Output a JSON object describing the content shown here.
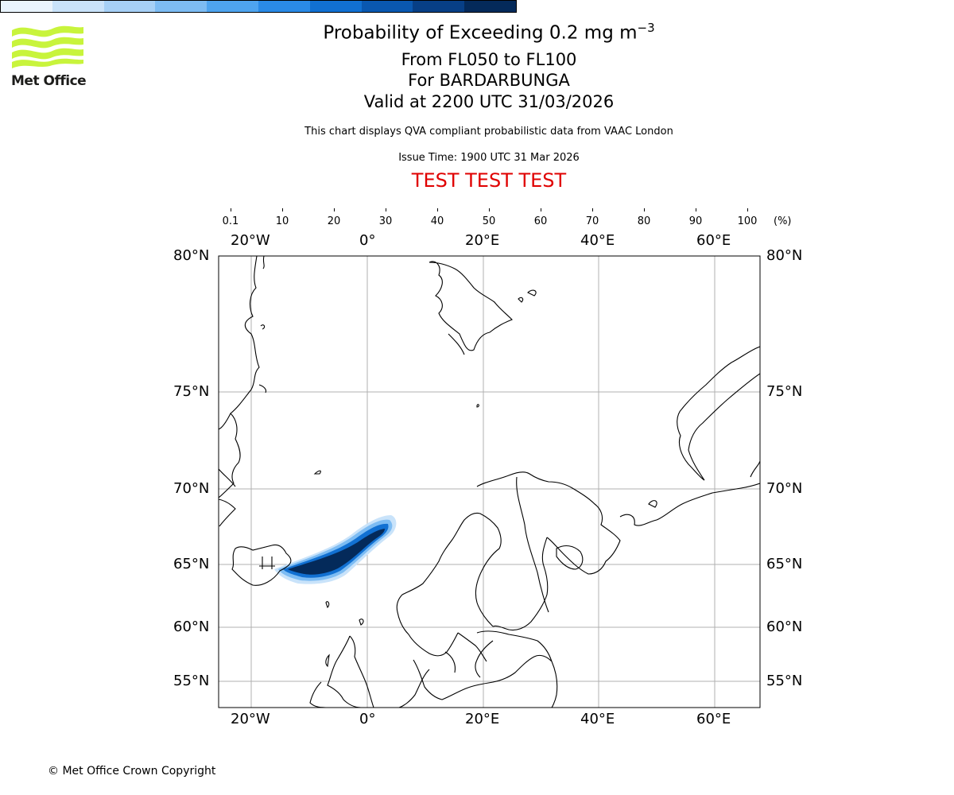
{
  "header": {
    "title_prefix": "Probability of Exceeding 0.2 mg m",
    "title_superscript": "−3",
    "line1": "From FL050 to FL100",
    "line2": "For BARDARBUNGA",
    "line3": "Valid at 2200 UTC 31/03/2026",
    "note": "This chart displays QVA compliant probabilistic data from VAAC London",
    "issue_time": "Issue Time: 1900 UTC 31 Mar 2026",
    "test_banner": "TEST TEST TEST",
    "test_color": "#e00000"
  },
  "logo": {
    "icon": "met-office-wave-logo-icon",
    "text": "Met Office",
    "color": "#c8f43c"
  },
  "colorbar": {
    "ticks": [
      "0.1",
      "10",
      "20",
      "30",
      "40",
      "50",
      "60",
      "70",
      "80",
      "90",
      "100"
    ],
    "unit": "(%)",
    "colors": [
      "#eaf4fd",
      "#c9e3fa",
      "#a6d0f6",
      "#7dbcf3",
      "#4ea4ef",
      "#2a8ae6",
      "#1170d2",
      "#0a58b0",
      "#073f86",
      "#042a5a"
    ]
  },
  "map": {
    "longitude_labels": [
      "20°W",
      "0°",
      "20°E",
      "40°E",
      "60°E"
    ],
    "latitude_labels": [
      "80°N",
      "75°N",
      "70°N",
      "65°N",
      "60°N",
      "55°N"
    ],
    "grid": true,
    "coastline_color": "#000000",
    "gridline_color": "#b0b0b0"
  },
  "footer": {
    "copyright": "© Met Office Crown Copyright"
  }
}
